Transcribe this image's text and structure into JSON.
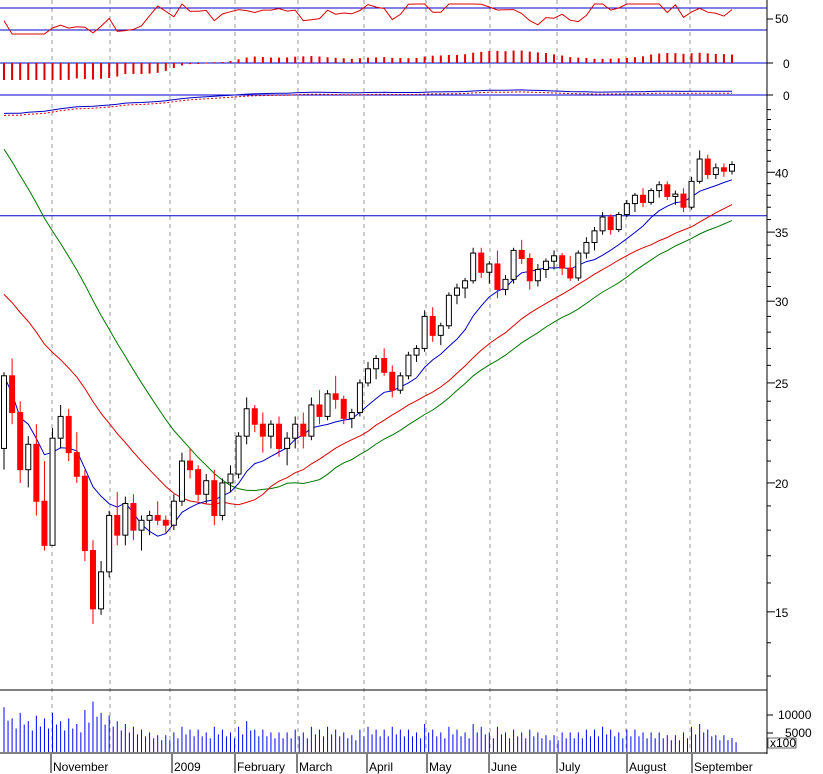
{
  "chart_data": {
    "type": "candlestick",
    "title": "",
    "price_scale": "log",
    "colors": {
      "up_candle": "#000000",
      "down_candle": "#ff0000",
      "ma_short": "#0000cc",
      "ma_mid": "#dd0000",
      "ma_long": "#007700",
      "guide_line": "#0000cc",
      "volume": "#0000ff",
      "indicator": "#dd0000",
      "grid": "#9a9a9a"
    },
    "x_labels": [
      "November",
      "2009",
      "February",
      "March",
      "April",
      "May",
      "June",
      "July",
      "August",
      "September"
    ],
    "y_ticks": [
      15,
      20,
      25,
      30,
      35,
      40
    ],
    "ylim": [
      12.6,
      47
    ],
    "guide_price": 36.3,
    "panels": {
      "oscillator": {
        "tick": "50",
        "band_top": 60,
        "band_bottom": 40
      },
      "histogram": {
        "tick": "0"
      },
      "lines": {
        "tick": "0"
      }
    },
    "volume": {
      "ticks": [
        "10000",
        "5000"
      ],
      "multiplier": "x100"
    },
    "candles": [
      [
        21.6,
        25.6,
        20.6,
        25.4,
        80
      ],
      [
        25.4,
        26.4,
        22.8,
        23.4,
        60
      ],
      [
        23.4,
        24,
        20,
        20.6,
        70
      ],
      [
        20.6,
        22.2,
        19.8,
        21.8,
        55
      ],
      [
        21.8,
        22.8,
        18.6,
        19.2,
        65
      ],
      [
        19.2,
        21,
        17.2,
        17.4,
        60
      ],
      [
        17.4,
        22.6,
        17.4,
        22.1,
        70
      ],
      [
        22.1,
        23.8,
        21.6,
        23.2,
        55
      ],
      [
        23.2,
        23.6,
        21,
        21.4,
        60
      ],
      [
        21.4,
        22.4,
        20,
        20.3,
        50
      ],
      [
        20.3,
        20.6,
        16.8,
        17.2,
        75
      ],
      [
        17.2,
        17.6,
        14.6,
        15.1,
        90
      ],
      [
        15.1,
        16.8,
        14.9,
        16.4,
        70
      ],
      [
        16.4,
        18.8,
        16.2,
        18.6,
        65
      ],
      [
        18.6,
        19.6,
        17.4,
        17.8,
        55
      ],
      [
        17.8,
        19.4,
        17.4,
        19.1,
        50
      ],
      [
        19.1,
        19.5,
        17.6,
        18,
        45
      ],
      [
        18,
        18.6,
        17.2,
        18.4,
        40
      ],
      [
        18.4,
        18.8,
        17.8,
        18.6,
        35
      ],
      [
        18.6,
        19.2,
        18.2,
        18.4,
        30
      ],
      [
        18.4,
        18.6,
        17.9,
        18.2,
        30
      ],
      [
        18.2,
        19.5,
        18,
        19.2,
        35
      ],
      [
        19.2,
        21.4,
        19,
        21,
        45
      ],
      [
        21,
        21.6,
        20.2,
        20.6,
        40
      ],
      [
        20.6,
        20.8,
        19.2,
        19.5,
        40
      ],
      [
        19.5,
        20.4,
        19.1,
        20.1,
        35
      ],
      [
        20.1,
        20.6,
        18.2,
        18.6,
        45
      ],
      [
        18.6,
        20.2,
        18.4,
        20,
        40
      ],
      [
        20,
        20.8,
        19.6,
        20.4,
        35
      ],
      [
        20.4,
        22.4,
        20.2,
        22.2,
        45
      ],
      [
        22.2,
        24.2,
        21.8,
        23.6,
        55
      ],
      [
        23.6,
        23.8,
        22.4,
        22.8,
        40
      ],
      [
        22.8,
        23.4,
        21.4,
        22.2,
        40
      ],
      [
        22.2,
        23,
        21.6,
        22.8,
        35
      ],
      [
        22.8,
        23.2,
        21.2,
        21.6,
        35
      ],
      [
        21.6,
        22.4,
        20.8,
        22.1,
        35
      ],
      [
        22.1,
        23.2,
        21.6,
        22.8,
        40
      ],
      [
        22.8,
        23.4,
        21.6,
        22.2,
        35
      ],
      [
        22.2,
        24.2,
        22,
        23.8,
        45
      ],
      [
        23.8,
        24.6,
        22.8,
        23.2,
        40
      ],
      [
        23.2,
        24.6,
        23,
        24.4,
        45
      ],
      [
        24.4,
        25.4,
        23.6,
        24.1,
        40
      ],
      [
        24.1,
        24.3,
        22.8,
        23.1,
        35
      ],
      [
        23.1,
        23.6,
        22.6,
        23.4,
        30
      ],
      [
        23.4,
        25.2,
        23.2,
        25,
        40
      ],
      [
        25,
        26.2,
        24.8,
        25.8,
        45
      ],
      [
        25.8,
        26.6,
        25.2,
        26.4,
        40
      ],
      [
        26.4,
        27,
        25.4,
        25.6,
        40
      ],
      [
        25.6,
        26,
        24.2,
        24.6,
        45
      ],
      [
        24.6,
        25.6,
        24.4,
        25.4,
        40
      ],
      [
        25.4,
        26.8,
        25.2,
        26.6,
        40
      ],
      [
        26.6,
        27.2,
        26.2,
        27,
        35
      ],
      [
        27,
        29.4,
        26.8,
        29,
        50
      ],
      [
        29,
        29.6,
        27.4,
        27.8,
        40
      ],
      [
        27.8,
        28.6,
        27.2,
        28.4,
        35
      ],
      [
        28.4,
        30.6,
        28.2,
        30.4,
        45
      ],
      [
        30.4,
        31.2,
        29.8,
        30.9,
        40
      ],
      [
        30.9,
        31.6,
        30.2,
        31.4,
        35
      ],
      [
        31.4,
        33.8,
        31.2,
        33.4,
        50
      ],
      [
        33.4,
        33.8,
        31.6,
        32,
        45
      ],
      [
        32,
        32.8,
        31.2,
        32.6,
        35
      ],
      [
        32.6,
        33.6,
        30.2,
        30.8,
        45
      ],
      [
        30.8,
        31.8,
        30.4,
        31.5,
        35
      ],
      [
        31.5,
        33.8,
        31.2,
        33.6,
        40
      ],
      [
        33.6,
        34.4,
        32.6,
        33,
        35
      ],
      [
        33,
        33.4,
        30.8,
        31.4,
        40
      ],
      [
        31.4,
        32.6,
        31,
        32.2,
        35
      ],
      [
        32.2,
        33,
        31.6,
        32.8,
        30
      ],
      [
        32.8,
        33.6,
        32.2,
        33.2,
        30
      ],
      [
        33.2,
        33.4,
        31.8,
        32.3,
        35
      ],
      [
        32.3,
        33.2,
        31.4,
        31.6,
        35
      ],
      [
        31.6,
        33.6,
        31.4,
        33.4,
        35
      ],
      [
        33.4,
        34.6,
        33,
        34.2,
        40
      ],
      [
        34.2,
        35.4,
        33.6,
        35.1,
        40
      ],
      [
        35.1,
        36.6,
        34.8,
        36.2,
        45
      ],
      [
        36.2,
        36.4,
        34.8,
        35.2,
        40
      ],
      [
        35.2,
        36.6,
        35,
        36.4,
        35
      ],
      [
        36.4,
        37.6,
        36.2,
        37.3,
        40
      ],
      [
        37.3,
        38.2,
        36.6,
        38,
        40
      ],
      [
        38,
        38.6,
        37,
        37.4,
        35
      ],
      [
        37.4,
        38.6,
        37.2,
        38.4,
        35
      ],
      [
        38.4,
        39.2,
        37.8,
        38.9,
        35
      ],
      [
        38.9,
        39.2,
        37.6,
        37.9,
        30
      ],
      [
        37.9,
        38.4,
        37.2,
        38.1,
        30
      ],
      [
        38.1,
        38.6,
        36.6,
        37,
        35
      ],
      [
        37,
        39.6,
        36.8,
        39.2,
        45
      ],
      [
        39.2,
        42,
        39,
        41.2,
        50
      ],
      [
        41.2,
        41.6,
        39.4,
        39.8,
        40
      ],
      [
        39.8,
        40.8,
        39.4,
        40.4,
        30
      ],
      [
        40.4,
        40.8,
        39.6,
        40.1,
        30
      ],
      [
        40.1,
        41,
        39.8,
        40.7,
        25
      ]
    ]
  }
}
